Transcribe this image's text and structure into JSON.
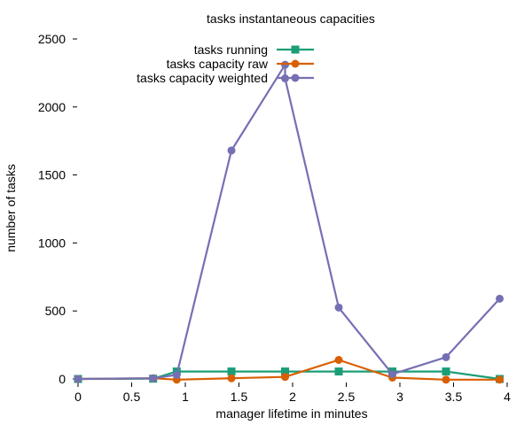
{
  "chart_data": {
    "type": "line",
    "title": "tasks instantaneous capacities",
    "xlabel": "manager lifetime in minutes",
    "ylabel": "number of tasks",
    "xlim": [
      0,
      4
    ],
    "ylim": [
      0,
      2500
    ],
    "x_ticks": [
      0,
      0.5,
      1,
      1.5,
      2,
      2.5,
      3,
      3.5,
      4
    ],
    "x_tick_labels": [
      "0",
      "0.5",
      "1",
      "1.5",
      "2",
      "2.5",
      "3",
      "3.5",
      "4"
    ],
    "y_ticks": [
      0,
      500,
      1000,
      1500,
      2000,
      2500
    ],
    "y_tick_labels": [
      "0",
      "500",
      "1000",
      "1500",
      "2000",
      "2500"
    ],
    "grid": false,
    "legend_position": "top-right",
    "series": [
      {
        "name": "tasks running",
        "color": "#1b9e77",
        "marker": "square",
        "points": [
          [
            0,
            0
          ],
          [
            0.7,
            2
          ],
          [
            0.92,
            55
          ],
          [
            1.43,
            55
          ],
          [
            1.93,
            55
          ],
          [
            2.43,
            55
          ],
          [
            2.93,
            55
          ],
          [
            3.43,
            55
          ],
          [
            3.93,
            0
          ]
        ]
      },
      {
        "name": "tasks capacity raw",
        "color": "#d95f02",
        "marker": "circle",
        "points": [
          [
            0,
            0
          ],
          [
            0.7,
            5
          ],
          [
            0.92,
            -5
          ],
          [
            1.43,
            5
          ],
          [
            1.93,
            15
          ],
          [
            2.43,
            140
          ],
          [
            2.93,
            10
          ],
          [
            3.43,
            -5
          ],
          [
            3.93,
            -5
          ]
        ]
      },
      {
        "name": "tasks capacity weighted",
        "color": "#7570b3",
        "marker": "circle",
        "points": [
          [
            0,
            0
          ],
          [
            0.7,
            5
          ],
          [
            0.92,
            30
          ],
          [
            1.43,
            1680
          ],
          [
            1.93,
            2310
          ],
          [
            1.93,
            2210
          ],
          [
            2.43,
            525
          ],
          [
            2.93,
            35
          ],
          [
            3.43,
            160
          ],
          [
            3.93,
            590
          ]
        ]
      }
    ]
  }
}
